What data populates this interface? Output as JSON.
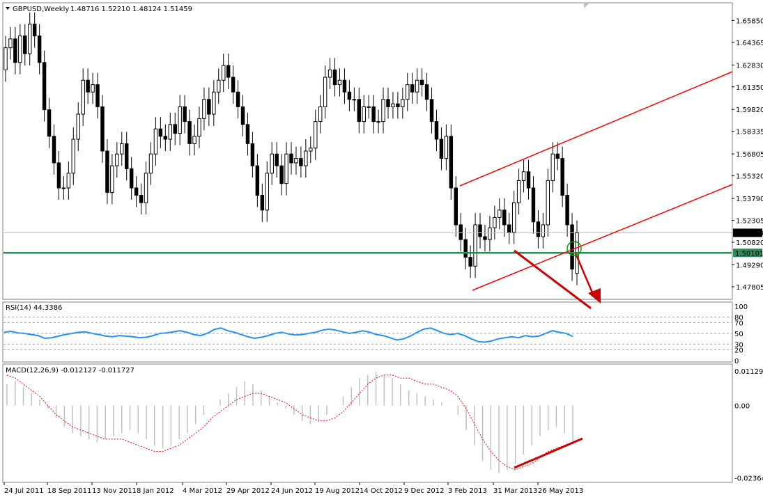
{
  "header": {
    "symbol": "GBPUSD,Weekly",
    "ohlc": "1.48716 1.52210 1.48124 1.51459"
  },
  "colors": {
    "bull_fill": "#ffffff",
    "bear_fill": "#000000",
    "channel": "#ff0000",
    "support": "#2e8b57",
    "rsi_line": "#1e90ff",
    "macd_hist": "#c0c0c0",
    "macd_signal": "#ff0000",
    "arrow": "#cc0000",
    "circle": "#00a000"
  },
  "chart_data": [
    {
      "type": "candlestick",
      "name": "price",
      "ylim": [
        1.47,
        1.67
      ],
      "y_ticks": [
        "1.65850",
        "1.64365",
        "1.62830",
        "1.61350",
        "1.59820",
        "1.58335",
        "1.56805",
        "1.55320",
        "1.53790",
        "1.52305",
        "1.50820",
        "1.49290",
        "1.47805"
      ],
      "x_tick_labels": [
        "24 Jul 2011",
        "18 Sep 2011",
        "13 Nov 2011",
        "8 Jan 2012",
        "4 Mar 2012",
        "29 Apr 2012",
        "24 Jun 2012",
        "19 Aug 2012",
        "14 Oct 2012",
        "9 Dec 2012",
        "3 Feb 2013",
        "31 Mar 2013",
        "26 May 2013"
      ],
      "last_price_label": "1.51459",
      "support_label": "1.50101",
      "support_level": 1.50101,
      "close": [
        1.64,
        1.646,
        1.63,
        1.648,
        1.636,
        1.656,
        1.648,
        1.63,
        1.598,
        1.58,
        1.562,
        1.545,
        1.545,
        1.555,
        1.578,
        1.595,
        1.618,
        1.61,
        1.615,
        1.6,
        1.57,
        1.542,
        1.56,
        1.568,
        1.575,
        1.558,
        1.545,
        1.54,
        1.535,
        1.555,
        1.568,
        1.585,
        1.58,
        1.578,
        1.588,
        1.582,
        1.6,
        1.59,
        1.575,
        1.58,
        1.592,
        1.605,
        1.595,
        1.61,
        1.618,
        1.628,
        1.62,
        1.61,
        1.6,
        1.588,
        1.575,
        1.56,
        1.54,
        1.53,
        1.555,
        1.568,
        1.56,
        1.548,
        1.568,
        1.562,
        1.565,
        1.56,
        1.57,
        1.572,
        1.59,
        1.6,
        1.62,
        1.625,
        1.615,
        1.618,
        1.61,
        1.605,
        1.605,
        1.59,
        1.6,
        1.6,
        1.59,
        1.59,
        1.605,
        1.6,
        1.602,
        1.6,
        1.605,
        1.615,
        1.61,
        1.618,
        1.615,
        1.605,
        1.59,
        1.578,
        1.565,
        1.58,
        1.545,
        1.52,
        1.51,
        1.498,
        1.492,
        1.52,
        1.512,
        1.51,
        1.518,
        1.525,
        1.53,
        1.52,
        1.515,
        1.535,
        1.55,
        1.556,
        1.545,
        1.522,
        1.512,
        1.52,
        1.55,
        1.568,
        1.565,
        1.54,
        1.52,
        1.49,
        1.515
      ],
      "open": [
        1.625,
        1.64,
        1.646,
        1.63,
        1.648,
        1.636,
        1.656,
        1.648,
        1.63,
        1.598,
        1.58,
        1.562,
        1.545,
        1.545,
        1.555,
        1.578,
        1.595,
        1.618,
        1.61,
        1.615,
        1.6,
        1.57,
        1.542,
        1.56,
        1.568,
        1.575,
        1.558,
        1.545,
        1.54,
        1.535,
        1.555,
        1.568,
        1.585,
        1.58,
        1.578,
        1.588,
        1.582,
        1.6,
        1.59,
        1.575,
        1.58,
        1.592,
        1.605,
        1.595,
        1.61,
        1.618,
        1.628,
        1.62,
        1.61,
        1.6,
        1.588,
        1.575,
        1.56,
        1.54,
        1.53,
        1.555,
        1.568,
        1.56,
        1.548,
        1.568,
        1.562,
        1.565,
        1.56,
        1.57,
        1.572,
        1.59,
        1.6,
        1.62,
        1.625,
        1.615,
        1.618,
        1.61,
        1.605,
        1.605,
        1.59,
        1.6,
        1.6,
        1.59,
        1.59,
        1.605,
        1.6,
        1.602,
        1.6,
        1.605,
        1.615,
        1.61,
        1.618,
        1.615,
        1.605,
        1.59,
        1.578,
        1.565,
        1.58,
        1.545,
        1.52,
        1.51,
        1.498,
        1.492,
        1.52,
        1.512,
        1.51,
        1.518,
        1.525,
        1.53,
        1.52,
        1.515,
        1.535,
        1.55,
        1.556,
        1.545,
        1.522,
        1.512,
        1.52,
        1.55,
        1.568,
        1.565,
        1.54,
        1.52,
        1.48716
      ]
    },
    {
      "type": "line",
      "name": "RSI(14)",
      "title": "RSI(14) 44.3386",
      "ylim": [
        0,
        100
      ],
      "y_ticks": [
        "100",
        "80",
        "70",
        "50",
        "30",
        "20",
        "0"
      ],
      "levels": [
        80,
        70,
        50,
        30,
        20
      ],
      "values": [
        52,
        54,
        51,
        50,
        48,
        46,
        41,
        42,
        45,
        48,
        50,
        52,
        53,
        50,
        48,
        45,
        44,
        46,
        45,
        44,
        42,
        43,
        46,
        50,
        51,
        53,
        55,
        52,
        48,
        46,
        50,
        57,
        60,
        55,
        52,
        48,
        44,
        41,
        43,
        46,
        50,
        52,
        49,
        47,
        48,
        50,
        52,
        56,
        58,
        56,
        53,
        50,
        52,
        55,
        52,
        48,
        46,
        42,
        38,
        40,
        45,
        52,
        58,
        60,
        55,
        50,
        48,
        50,
        46,
        40,
        35,
        34,
        36,
        40,
        42,
        44,
        42,
        46,
        44,
        45,
        50,
        55,
        52,
        50,
        44.3386
      ]
    },
    {
      "type": "histogram+line",
      "name": "MACD(12,26,9)",
      "title": "MACD(12,26,9) -0.012127 -0.011727",
      "ylim": [
        -0.024,
        0.012
      ],
      "y_ticks": [
        "0.011296",
        "0.00",
        "-0.023642"
      ],
      "histogram": [
        0.007,
        0.008,
        0.006,
        0.004,
        0.002,
        -0.001,
        -0.004,
        -0.007,
        -0.009,
        -0.01,
        -0.011,
        -0.012,
        -0.011,
        -0.01,
        -0.009,
        -0.008,
        -0.009,
        -0.011,
        -0.013,
        -0.014,
        -0.013,
        -0.011,
        -0.009,
        -0.006,
        -0.003,
        0.0,
        0.002,
        0.004,
        0.006,
        0.008,
        0.007,
        0.005,
        0.003,
        0.001,
        -0.001,
        -0.003,
        -0.005,
        -0.006,
        -0.005,
        -0.003,
        0.0,
        0.003,
        0.006,
        0.009,
        0.01,
        0.011,
        0.01,
        0.009,
        0.007,
        0.005,
        0.004,
        0.003,
        0.002,
        0.001,
        0.0,
        -0.003,
        -0.008,
        -0.013,
        -0.018,
        -0.021,
        -0.022,
        -0.021,
        -0.019,
        -0.016,
        -0.013,
        -0.01,
        -0.008,
        -0.007,
        -0.009,
        -0.012
      ],
      "signal": [
        0.01,
        0.009,
        0.007,
        0.005,
        0.003,
        0.0,
        -0.003,
        -0.005,
        -0.007,
        -0.008,
        -0.009,
        -0.01,
        -0.011,
        -0.011,
        -0.011,
        -0.012,
        -0.013,
        -0.014,
        -0.015,
        -0.015,
        -0.014,
        -0.013,
        -0.011,
        -0.009,
        -0.007,
        -0.004,
        -0.002,
        0.0,
        0.002,
        0.003,
        0.004,
        0.004,
        0.003,
        0.002,
        0.001,
        -0.001,
        -0.003,
        -0.004,
        -0.005,
        -0.005,
        -0.004,
        -0.002,
        0.001,
        0.004,
        0.007,
        0.009,
        0.01,
        0.01,
        0.009,
        0.009,
        0.008,
        0.007,
        0.007,
        0.006,
        0.005,
        0.003,
        -0.001,
        -0.006,
        -0.011,
        -0.015,
        -0.018,
        -0.02,
        -0.021,
        -0.02,
        -0.019,
        -0.017,
        -0.015,
        -0.014,
        -0.013,
        -0.012
      ]
    }
  ]
}
